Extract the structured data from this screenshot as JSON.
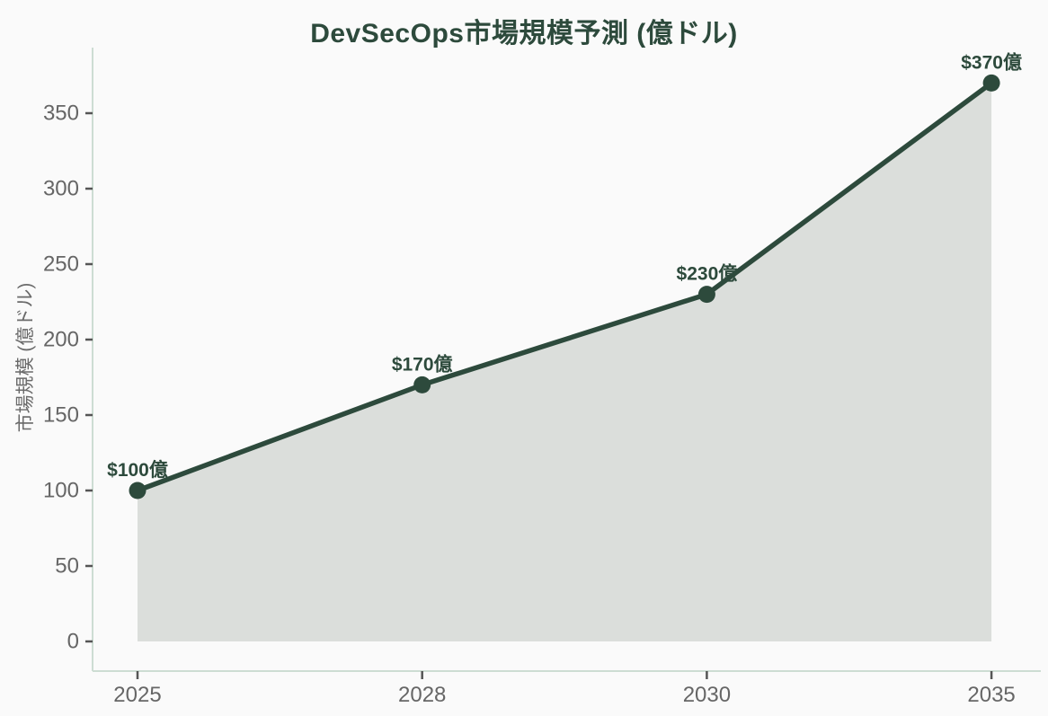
{
  "chart_data": {
    "type": "area",
    "title": "DevSecOps市場規模予測 (億ドル)",
    "ylabel": "市場規模 (億ドル)",
    "xlabel": "",
    "categories": [
      "2025",
      "2028",
      "2030",
      "2035"
    ],
    "values": [
      100,
      170,
      230,
      370
    ],
    "point_labels": [
      "$100億",
      "$170億",
      "$230億",
      "$370億"
    ],
    "yticks": [
      0,
      50,
      100,
      150,
      200,
      250,
      300,
      350
    ],
    "ylim": [
      0,
      393
    ],
    "grid": false,
    "legend": "none",
    "colors": {
      "background": "#fafafa",
      "line": "#2d4a3c",
      "marker": "#2d4a3c",
      "area_fill": "#dbdedb",
      "axis": "#cdddd3",
      "tick": "#555555",
      "tick_label": "#666666",
      "title": "#2d4a3c",
      "data_label": "#2d4a3c"
    }
  }
}
